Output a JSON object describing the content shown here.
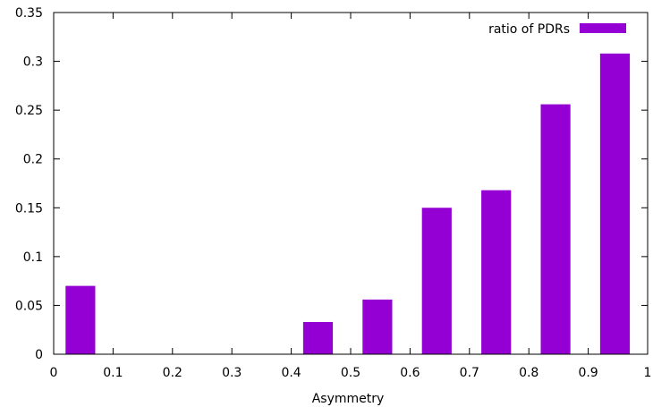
{
  "chart_data": {
    "type": "bar",
    "title": "",
    "xlabel": "Asymmetry",
    "ylabel": "",
    "xlim": [
      0,
      1
    ],
    "ylim": [
      0,
      0.35
    ],
    "x_ticks": [
      "0",
      "0.1",
      "0.2",
      "0.3",
      "0.4",
      "0.5",
      "0.6",
      "0.7",
      "0.8",
      "0.9",
      "1"
    ],
    "y_ticks": [
      "0",
      "0.05",
      "0.1",
      "0.15",
      "0.2",
      "0.25",
      "0.3",
      "0.35"
    ],
    "bar_x_ranges": [
      [
        0.02,
        0.07
      ],
      [
        0.42,
        0.47
      ],
      [
        0.52,
        0.57
      ],
      [
        0.62,
        0.67
      ],
      [
        0.72,
        0.77
      ],
      [
        0.82,
        0.87
      ],
      [
        0.92,
        0.97
      ]
    ],
    "series": [
      {
        "name": "ratio of PDRs",
        "color": "#9400d3",
        "values": [
          0.07,
          0.033,
          0.056,
          0.15,
          0.168,
          0.256,
          0.308
        ]
      }
    ],
    "grid": false,
    "legend": "top-right"
  }
}
